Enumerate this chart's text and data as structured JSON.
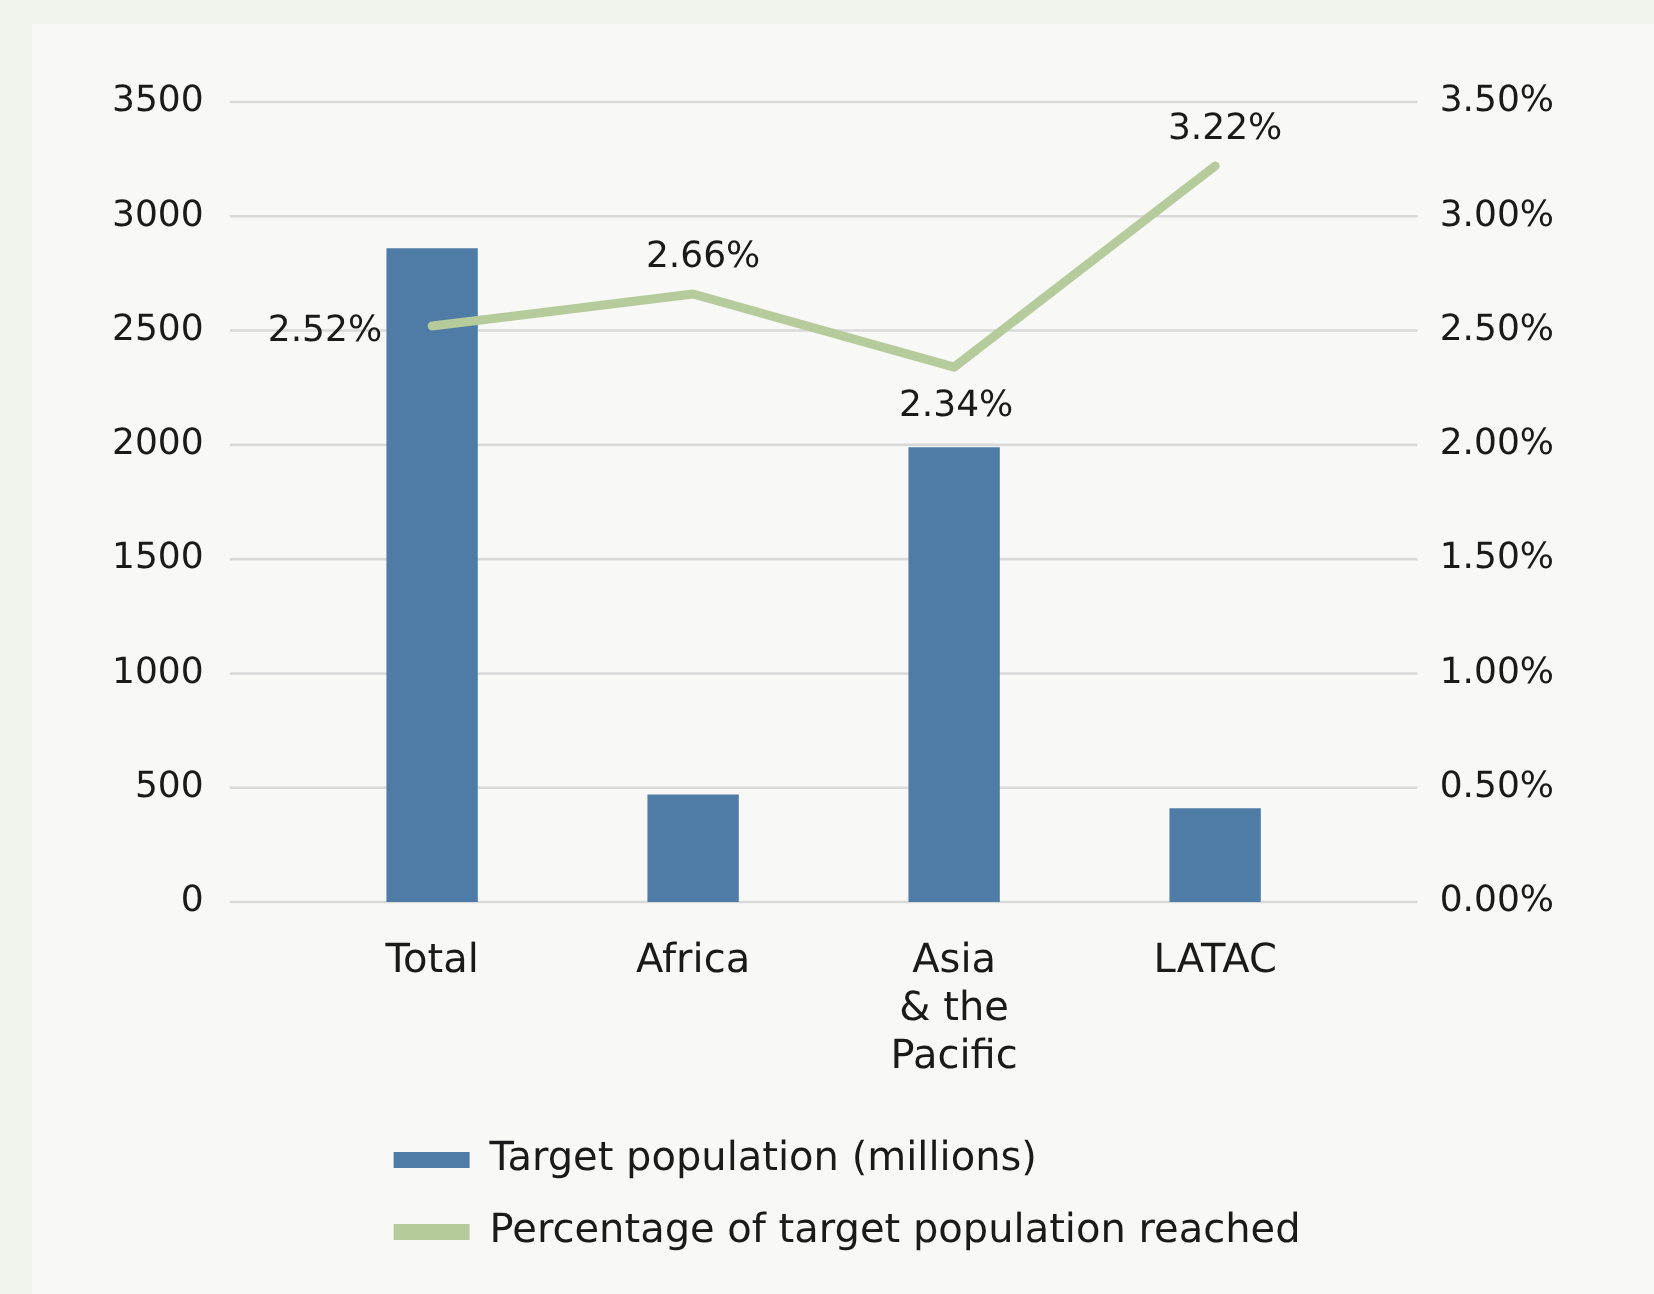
{
  "chart_data": {
    "type": "bar",
    "categories": [
      "Total",
      "Africa",
      "Asia & the Pacific",
      "LATAC"
    ],
    "series": [
      {
        "name": "Target population (millions)",
        "color": "#4e7ca6",
        "values": [
          2860,
          470,
          1990,
          410
        ]
      },
      {
        "name": "Percentage of target population reached",
        "type": "line",
        "axis": "y2",
        "color": "#b6cb9c",
        "values": [
          2.52,
          2.66,
          2.34,
          3.22
        ],
        "value_labels": [
          "2.52%",
          "2.66%",
          "2.34%",
          "3.22%"
        ]
      }
    ],
    "ylim": [
      0,
      3500
    ],
    "yticks": [
      0,
      500,
      1000,
      1500,
      2000,
      2500,
      3000,
      3500
    ],
    "y2lim": [
      0,
      3.5
    ],
    "y2ticks": [
      {
        "value": 0,
        "label": "0.00%"
      },
      {
        "value": 0.5,
        "label": "0.50%"
      },
      {
        "value": 1,
        "label": "1.00%"
      },
      {
        "value": 1.5,
        "label": "1.50%"
      },
      {
        "value": 2,
        "label": "2.00%"
      },
      {
        "value": 2.5,
        "label": "2.50%"
      },
      {
        "value": 3,
        "label": "3.00%"
      },
      {
        "value": 3.5,
        "label": "3.50%"
      }
    ],
    "grid": "y",
    "legend": "bottom",
    "marker": "none",
    "line_style": "solid"
  }
}
